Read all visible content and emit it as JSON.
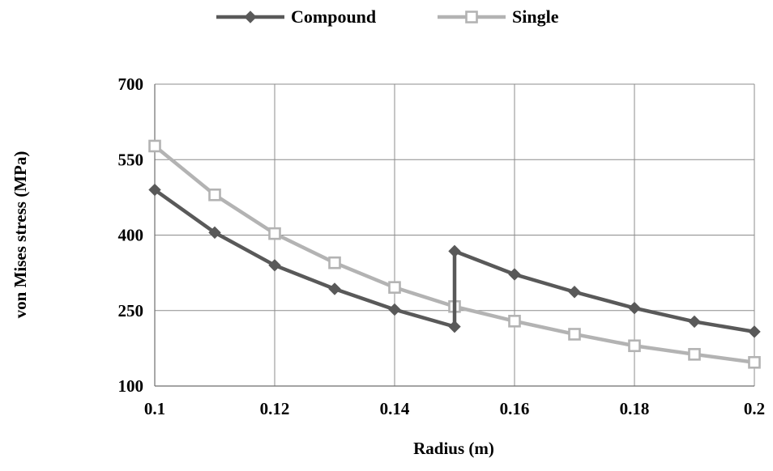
{
  "chart_data": {
    "type": "line",
    "title": "",
    "xlabel": "Radius (m)",
    "ylabel": "von Mises stress (MPa)",
    "xlim": [
      0.1,
      0.2
    ],
    "ylim": [
      100,
      700
    ],
    "x_ticks": [
      0.1,
      0.12,
      0.14,
      0.16,
      0.18,
      0.2
    ],
    "x_tick_labels": [
      "0.1",
      "0.12",
      "0.14",
      "0.16",
      "0.18",
      "0.2"
    ],
    "y_ticks": [
      100,
      250,
      400,
      550,
      700
    ],
    "y_tick_labels": [
      "100",
      "250",
      "400",
      "550",
      "700"
    ],
    "grid": true,
    "legend_position": "top",
    "series": [
      {
        "name": "Compound",
        "color": "#595959",
        "marker": "diamond",
        "x": [
          0.1,
          0.11,
          0.12,
          0.13,
          0.14,
          0.15,
          0.15,
          0.16,
          0.17,
          0.18,
          0.19,
          0.2
        ],
        "y": [
          490,
          405,
          340,
          293,
          252,
          218,
          368,
          322,
          287,
          255,
          228,
          208
        ]
      },
      {
        "name": "Single",
        "color": "#b3b3b3",
        "marker": "square-open",
        "x": [
          0.1,
          0.11,
          0.12,
          0.13,
          0.14,
          0.15,
          0.16,
          0.17,
          0.18,
          0.19,
          0.2
        ],
        "y": [
          577,
          480,
          403,
          345,
          296,
          258,
          229,
          203,
          180,
          163,
          147
        ]
      }
    ]
  }
}
